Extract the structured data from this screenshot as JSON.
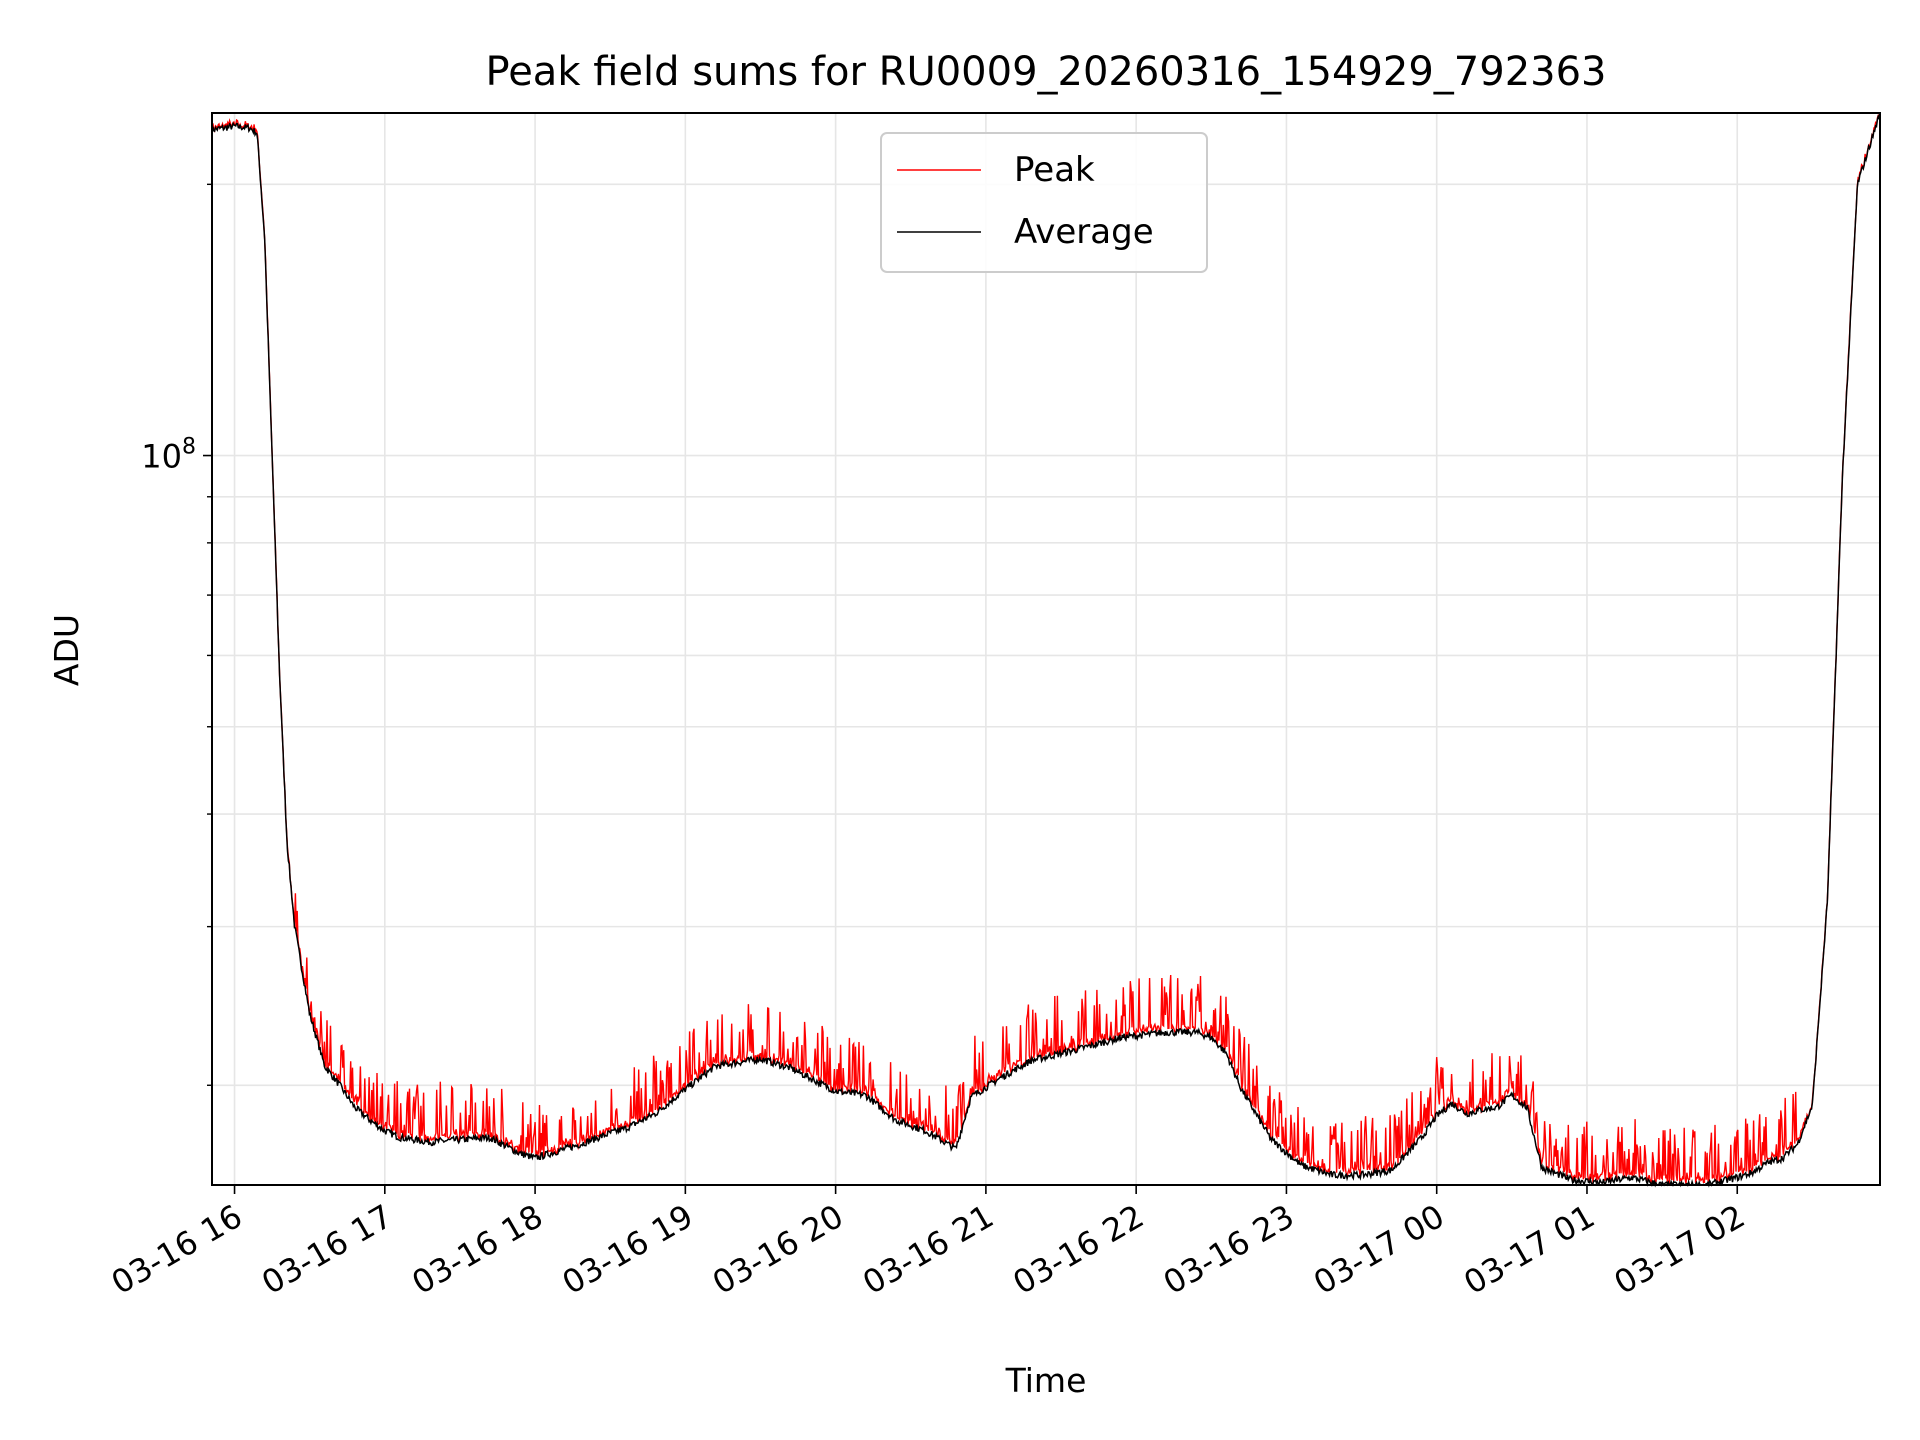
{
  "chart_data": {
    "type": "line",
    "title": "Peak field sums for RU0009_20260316_154929_792363",
    "xlabel": "Time",
    "ylabel": "ADU",
    "y_scale": "log",
    "ylim": [
      15500000,
      240000000
    ],
    "y_major_tick": {
      "value": 100000000,
      "base": "10",
      "exponent": "8"
    },
    "y_minor_ticks": [
      20000000,
      30000000,
      40000000,
      50000000,
      60000000,
      70000000,
      80000000,
      90000000,
      200000000
    ],
    "x_unit": "hours since 03-16 16:00",
    "xlim": [
      -0.15,
      10.95
    ],
    "x_ticks": [
      {
        "value": 0,
        "label": "03-16 16"
      },
      {
        "value": 1,
        "label": "03-16 17"
      },
      {
        "value": 2,
        "label": "03-16 18"
      },
      {
        "value": 3,
        "label": "03-16 19"
      },
      {
        "value": 4,
        "label": "03-16 20"
      },
      {
        "value": 5,
        "label": "03-16 21"
      },
      {
        "value": 6,
        "label": "03-16 22"
      },
      {
        "value": 7,
        "label": "03-16 23"
      },
      {
        "value": 8,
        "label": "03-17 00"
      },
      {
        "value": 9,
        "label": "03-17 01"
      },
      {
        "value": 10,
        "label": "03-17 02"
      }
    ],
    "grid": true,
    "legend_position": "upper-center",
    "series": [
      {
        "name": "Peak",
        "color": "#ff0000",
        "description": "Average level plus frequent positive spikes of roughly 5-30%"
      },
      {
        "name": "Average",
        "color": "#000000",
        "x": [
          -0.15,
          0.0,
          0.1,
          0.15,
          0.2,
          0.25,
          0.3,
          0.35,
          0.4,
          0.5,
          0.6,
          0.7,
          0.8,
          0.9,
          1.0,
          1.1,
          1.3,
          1.5,
          1.7,
          1.9,
          2.0,
          2.1,
          2.3,
          2.5,
          2.6,
          2.8,
          3.0,
          3.2,
          3.5,
          3.7,
          4.0,
          4.2,
          4.4,
          4.6,
          4.8,
          4.9,
          5.1,
          5.3,
          5.6,
          5.9,
          6.2,
          6.4,
          6.5,
          6.6,
          6.7,
          6.9,
          7.1,
          7.3,
          7.5,
          7.7,
          7.9,
          8.0,
          8.1,
          8.2,
          8.3,
          8.4,
          8.5,
          8.6,
          8.7,
          8.9,
          9.1,
          9.3,
          9.5,
          9.8,
          10.0,
          10.1,
          10.2,
          10.3,
          10.4,
          10.5,
          10.6,
          10.7,
          10.8,
          10.95
        ],
        "y": [
          230000000,
          232000000,
          231000000,
          228000000,
          175000000,
          100000000,
          57000000,
          37000000,
          30000000,
          24000000,
          21000000,
          20000000,
          18900000,
          18300000,
          17800000,
          17500000,
          17300000,
          17400000,
          17500000,
          16800000,
          16600000,
          16800000,
          17200000,
          17700000,
          17900000,
          18600000,
          19800000,
          21000000,
          21400000,
          20900000,
          19700000,
          19500000,
          18300000,
          17800000,
          17000000,
          19400000,
          20400000,
          21300000,
          21900000,
          22600000,
          22900000,
          22900000,
          22600000,
          21700000,
          19800000,
          17400000,
          16300000,
          15900000,
          15900000,
          16100000,
          17500000,
          18500000,
          19100000,
          18600000,
          18800000,
          18900000,
          19500000,
          18900000,
          16200000,
          15700000,
          15600000,
          15800000,
          15500000,
          15500000,
          15800000,
          16000000,
          16400000,
          16600000,
          17200000,
          19000000,
          32000000,
          95000000,
          200000000,
          240000000
        ]
      }
    ]
  }
}
